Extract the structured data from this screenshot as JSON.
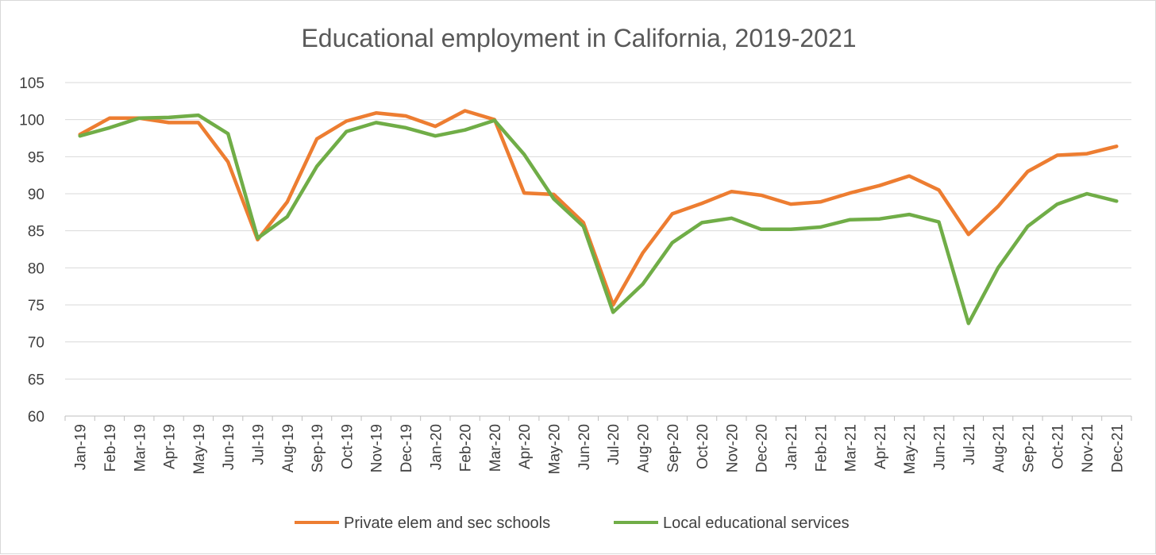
{
  "chart_data": {
    "type": "line",
    "title": "Educational employment in California, 2019-2021",
    "xlabel": "",
    "ylabel": "",
    "ylim": [
      60,
      105
    ],
    "y_ticks": [
      "60",
      "65",
      "70",
      "75",
      "80",
      "85",
      "90",
      "95",
      "100",
      "105"
    ],
    "grid": true,
    "legend_position": "bottom",
    "categories": [
      "Jan-19",
      "Feb-19",
      "Mar-19",
      "Apr-19",
      "May-19",
      "Jun-19",
      "Jul-19",
      "Aug-19",
      "Sep-19",
      "Oct-19",
      "Nov-19",
      "Dec-19",
      "Jan-20",
      "Feb-20",
      "Mar-20",
      "Apr-20",
      "May-20",
      "Jun-20",
      "Jul-20",
      "Aug-20",
      "Sep-20",
      "Oct-20",
      "Nov-20",
      "Dec-20",
      "Jan-21",
      "Feb-21",
      "Mar-21",
      "Apr-21",
      "May-21",
      "Jun-21",
      "Jul-21",
      "Aug-21",
      "Sep-21",
      "Oct-21",
      "Nov-21",
      "Dec-21"
    ],
    "series": [
      {
        "name": "Private elem and sec schools",
        "color": "#ed7d31",
        "values": [
          98.0,
          100.2,
          100.2,
          99.6,
          99.6,
          94.3,
          83.8,
          88.9,
          97.4,
          99.8,
          100.9,
          100.5,
          99.1,
          101.2,
          100.0,
          90.1,
          89.9,
          86.1,
          75.0,
          82.0,
          87.3,
          88.7,
          90.3,
          89.8,
          88.6,
          88.9,
          90.1,
          91.1,
          92.4,
          90.5,
          84.5,
          88.3,
          93.0,
          95.2,
          95.4,
          96.4
        ]
      },
      {
        "name": "Local educational services",
        "color": "#70ad47",
        "values": [
          97.8,
          98.9,
          100.2,
          100.3,
          100.6,
          98.1,
          84.0,
          86.9,
          93.7,
          98.4,
          99.6,
          98.9,
          97.8,
          98.6,
          99.9,
          95.3,
          89.3,
          85.6,
          74.0,
          77.8,
          83.4,
          86.1,
          86.7,
          85.2,
          85.2,
          85.5,
          86.5,
          86.6,
          87.2,
          86.2,
          72.5,
          80.0,
          85.6,
          88.6,
          90.0,
          89.0
        ]
      }
    ]
  }
}
